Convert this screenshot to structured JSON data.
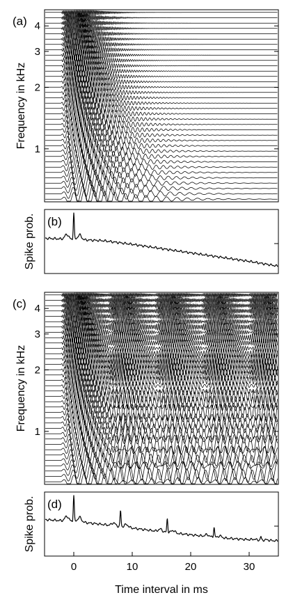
{
  "chart_data": [
    {
      "panel": "(a)",
      "type": "line",
      "description": "Filterbank outputs (stacked traces) for a single click at 0 ms",
      "ylabel": "Frequency in kHz",
      "xlim": [
        -5,
        35
      ],
      "y_scale": "log",
      "ylim_khz": [
        0.55,
        4.8
      ],
      "y_ticks": [
        1,
        2,
        3,
        4
      ],
      "grid": false,
      "series": [
        {
          "name": "filterbank",
          "channels": 36,
          "click_times_ms": [
            0
          ]
        }
      ]
    },
    {
      "panel": "(b)",
      "type": "line",
      "ylabel": "Spike prob.",
      "xlim": [
        -5,
        35
      ],
      "grid": false,
      "series": [
        {
          "name": "spike probability",
          "peaks": [
            {
              "x": 0,
              "height": 1.0
            }
          ],
          "x": [
            -5,
            0,
            5,
            10,
            15,
            20,
            25,
            30,
            35
          ],
          "y": [
            0.58,
            0.56,
            0.54,
            0.48,
            0.41,
            0.34,
            0.27,
            0.2,
            0.12
          ]
        }
      ]
    },
    {
      "panel": "(c)",
      "type": "line",
      "description": "Filterbank outputs (stacked traces) for a click train",
      "ylabel": "Frequency in kHz",
      "xlim": [
        -5,
        35
      ],
      "y_scale": "log",
      "ylim_khz": [
        0.55,
        4.8
      ],
      "y_ticks": [
        1,
        2,
        3,
        4
      ],
      "grid": false,
      "series": [
        {
          "name": "filterbank",
          "channels": 36,
          "click_times_ms": [
            0,
            8,
            16,
            24,
            32
          ]
        }
      ]
    },
    {
      "panel": "(d)",
      "type": "line",
      "xlabel": "Time interval in ms",
      "ylabel": "Spike prob.",
      "xlim": [
        -5,
        35
      ],
      "x_ticks": [
        0,
        10,
        20,
        30
      ],
      "grid": false,
      "series": [
        {
          "name": "spike probability",
          "peaks": [
            {
              "x": 0,
              "height": 1.0
            },
            {
              "x": 8,
              "height": 0.75
            },
            {
              "x": 16,
              "height": 0.62
            },
            {
              "x": 24,
              "height": 0.48
            },
            {
              "x": 32,
              "height": 0.32
            }
          ],
          "x": [
            -5,
            0,
            5,
            10,
            15,
            20,
            25,
            30,
            35
          ],
          "y": [
            0.6,
            0.57,
            0.52,
            0.46,
            0.4,
            0.35,
            0.3,
            0.27,
            0.25
          ]
        }
      ]
    }
  ]
}
